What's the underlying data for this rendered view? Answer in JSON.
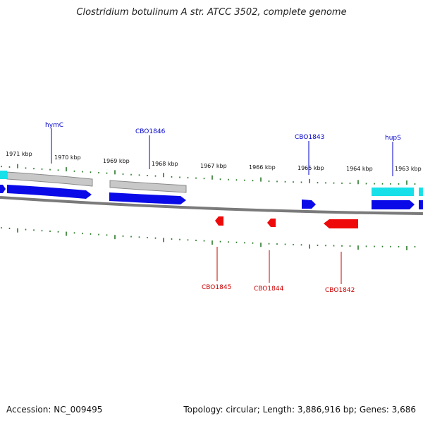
{
  "title": "Clostridium botulinum A str. ATCC 3502, complete genome",
  "accession": "Accession: NC_009495",
  "stats": "Topology: circular; Length: 3,886,916 bp; Genes: 3,686",
  "colors": {
    "backbone": "#808080",
    "gene_forward": "#0000ee",
    "gene_reverse": "#ee0000",
    "rna": "#00e0e0",
    "pseudo": "#b8b8b8",
    "tick": "#2a7a2a",
    "label_forward": "#0000cc",
    "label_reverse": "#cc0000"
  },
  "scale_labels": [
    "1971 kbp",
    "1970 kbp",
    "1969 kbp",
    "1968 kbp",
    "1967 kbp",
    "1966 kbp",
    "1965 kbp",
    "1964 kbp",
    "1963 kbp"
  ],
  "gene_labels_forward": [
    "hymC",
    "CBO1846",
    "CBO1843",
    "hupS"
  ],
  "gene_labels_reverse": [
    "CBO1845",
    "CBO1844",
    "CBO1842"
  ]
}
